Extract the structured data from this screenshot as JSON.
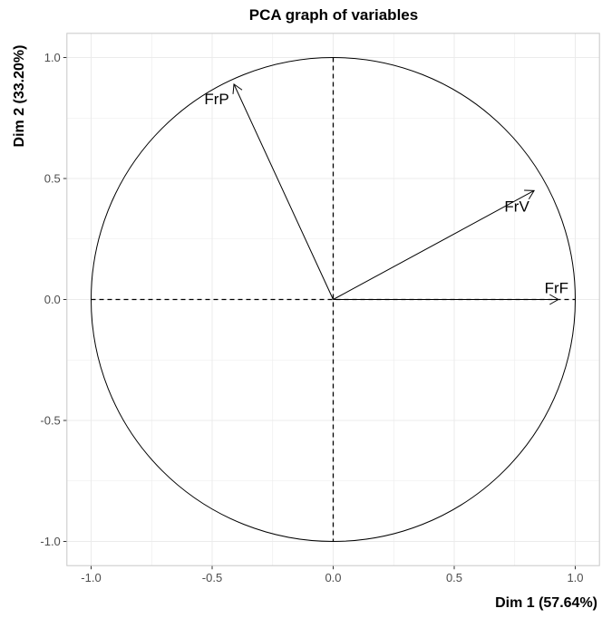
{
  "chart_data": {
    "type": "scatter",
    "title": "PCA graph of variables",
    "xlabel": "Dim 1 (57.64%)",
    "ylabel": "Dim 2 (33.20%)",
    "xlim": [
      -1.1,
      1.1
    ],
    "ylim": [
      -1.1,
      1.1
    ],
    "x_ticks": [
      -1.0,
      -0.5,
      0.0,
      0.5,
      1.0
    ],
    "y_ticks": [
      -1.0,
      -0.5,
      0.0,
      0.5,
      1.0
    ],
    "x_tick_labels": [
      "-1.0",
      "-0.5",
      "0.0",
      "0.5",
      "1.0"
    ],
    "y_tick_labels": [
      "-1.0",
      "-0.5",
      "0.0",
      "0.5",
      "1.0"
    ],
    "grid": true,
    "unit_circle": true,
    "variables": [
      {
        "name": "FrF",
        "x": 0.93,
        "y": 0.0
      },
      {
        "name": "FrV",
        "x": 0.83,
        "y": 0.45
      },
      {
        "name": "FrP",
        "x": -0.41,
        "y": 0.89
      }
    ]
  },
  "colors": {
    "grid": "#ebebeb",
    "panel_border": "#c8c8c8",
    "ink": "#000000",
    "tick_text": "#4d4d4d"
  }
}
